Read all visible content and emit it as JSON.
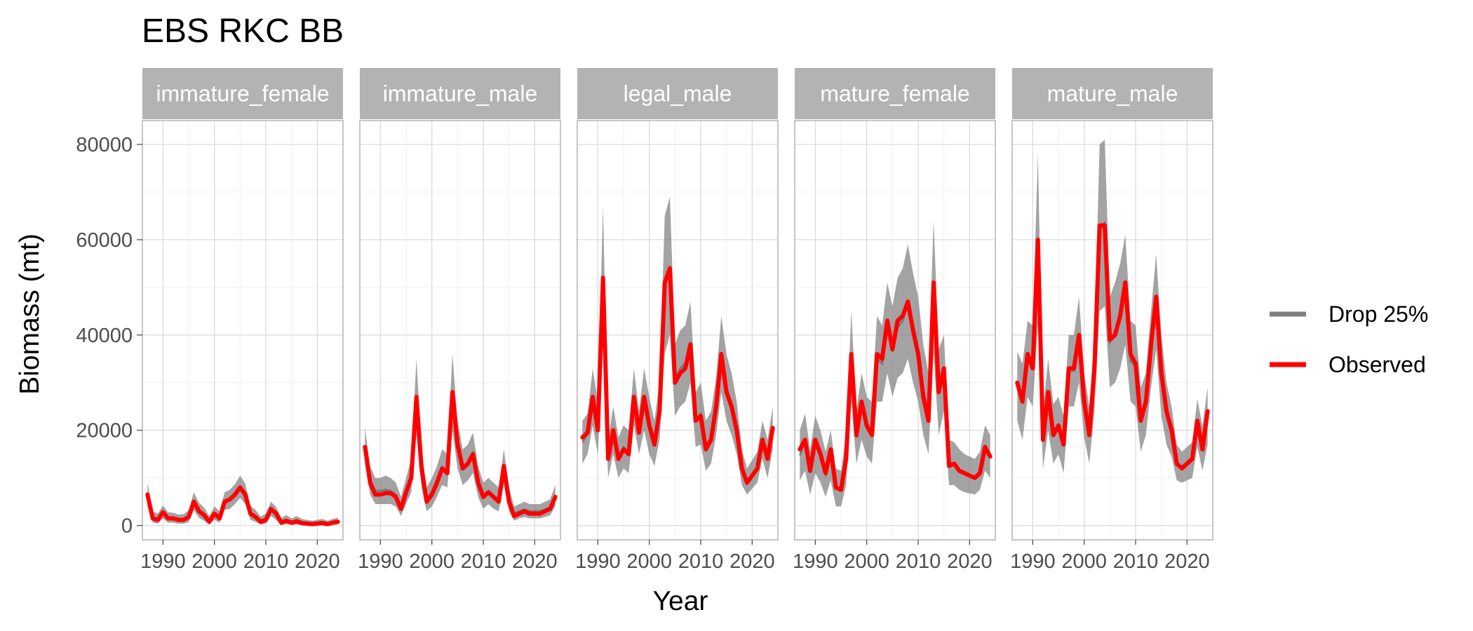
{
  "chart_data": {
    "type": "line",
    "title": "EBS RKC BB",
    "xlabel": "Year",
    "ylabel": "Biomass (mt)",
    "xlim": [
      1986,
      2025
    ],
    "ylim": [
      -3000,
      85000
    ],
    "x_ticks": [
      1990,
      2000,
      2010,
      2020
    ],
    "y_ticks": [
      0,
      20000,
      40000,
      60000,
      80000
    ],
    "grid": true,
    "legend_position": "right",
    "legend": [
      {
        "label": "Drop 25%",
        "color": "#7f7f7f"
      },
      {
        "label": "Observed",
        "color": "#ff0000"
      }
    ],
    "colors": {
      "band": "#7f7f7f",
      "observed": "#ff0000",
      "strip": "#b3b3b3"
    },
    "years": [
      1987,
      1988,
      1989,
      1990,
      1991,
      1992,
      1993,
      1994,
      1995,
      1996,
      1997,
      1998,
      1999,
      2000,
      2001,
      2002,
      2003,
      2004,
      2005,
      2006,
      2007,
      2008,
      2009,
      2010,
      2011,
      2012,
      2013,
      2014,
      2015,
      2016,
      2017,
      2018,
      2019,
      2021,
      2022,
      2023,
      2024
    ],
    "panels": [
      {
        "label": "immature_female",
        "observed": [
          6500,
          1500,
          1200,
          2800,
          1500,
          1500,
          1200,
          1200,
          1800,
          5000,
          3000,
          2200,
          800,
          2500,
          1500,
          5000,
          5500,
          6500,
          8000,
          6500,
          2500,
          1800,
          800,
          1200,
          3500,
          2500,
          600,
          1000,
          600,
          900,
          500,
          400,
          300,
          500,
          300,
          600,
          800
        ],
        "band_upper": [
          9000,
          3000,
          2500,
          4200,
          2800,
          2700,
          2300,
          2400,
          3200,
          7000,
          4800,
          3800,
          2000,
          4000,
          3000,
          7000,
          7500,
          8700,
          10500,
          8800,
          4200,
          3300,
          1900,
          2500,
          5000,
          3900,
          1600,
          2200,
          1500,
          2000,
          1400,
          1200,
          1000,
          1400,
          1000,
          1400,
          1700
        ],
        "band_lower": [
          4000,
          600,
          400,
          1500,
          600,
          600,
          400,
          400,
          700,
          3200,
          1600,
          1000,
          200,
          1200,
          600,
          3300,
          3500,
          4500,
          5800,
          4500,
          1200,
          800,
          200,
          400,
          2000,
          1200,
          100,
          300,
          100,
          200,
          100,
          50,
          50,
          100,
          50,
          100,
          200
        ]
      },
      {
        "label": "immature_male",
        "observed": [
          16500,
          9000,
          6500,
          6500,
          6800,
          6800,
          6000,
          3500,
          7000,
          10000,
          27000,
          12000,
          5000,
          6500,
          9000,
          12000,
          11000,
          28000,
          17000,
          12000,
          13000,
          15000,
          9000,
          6000,
          7000,
          6000,
          5000,
          12500,
          5000,
          2000,
          2500,
          3000,
          2500,
          2500,
          3000,
          3500,
          6000
        ],
        "band_upper": [
          20500,
          12500,
          10000,
          10000,
          10500,
          10000,
          9000,
          6000,
          10000,
          14000,
          35000,
          16000,
          8000,
          10000,
          12500,
          16000,
          15000,
          36000,
          22000,
          16000,
          17000,
          19500,
          12500,
          9000,
          10000,
          9000,
          8000,
          16000,
          8000,
          4000,
          4500,
          5000,
          4500,
          4500,
          5000,
          5500,
          8500
        ],
        "band_lower": [
          13000,
          6500,
          4500,
          4500,
          4500,
          4500,
          4000,
          2000,
          4500,
          7000,
          19000,
          8000,
          3000,
          4000,
          6000,
          8500,
          8000,
          20000,
          12000,
          8500,
          9500,
          11000,
          6000,
          3500,
          4500,
          3500,
          3000,
          8500,
          3000,
          1000,
          1500,
          1800,
          1500,
          1500,
          1800,
          2200,
          4000
        ]
      },
      {
        "label": "legal_male",
        "observed": [
          18500,
          19500,
          27000,
          20000,
          52000,
          14000,
          20000,
          14000,
          16000,
          15000,
          27000,
          19500,
          27000,
          21000,
          17000,
          24000,
          51000,
          54000,
          30000,
          32000,
          33000,
          38000,
          22000,
          23000,
          16000,
          18000,
          25000,
          36000,
          28000,
          25000,
          20000,
          12000,
          9000,
          12000,
          18000,
          14000,
          20500
        ],
        "band_upper": [
          22000,
          23500,
          33000,
          26000,
          67000,
          18000,
          25000,
          18500,
          21000,
          20000,
          33000,
          24000,
          33000,
          27000,
          22000,
          30000,
          65000,
          69000,
          38000,
          41000,
          42000,
          47000,
          28000,
          30000,
          22000,
          24000,
          31000,
          44000,
          36000,
          32000,
          26000,
          16000,
          12000,
          15500,
          22000,
          18000,
          25000
        ],
        "band_lower": [
          13000,
          15000,
          21000,
          15000,
          38000,
          10000,
          15000,
          10000,
          12000,
          11000,
          21000,
          15000,
          20000,
          15000,
          12500,
          18000,
          36000,
          40000,
          23000,
          25000,
          26000,
          30000,
          16500,
          17000,
          11500,
          13000,
          19000,
          28000,
          22000,
          19000,
          15000,
          8500,
          6500,
          9000,
          14000,
          10000,
          16000
        ]
      },
      {
        "label": "mature_female",
        "observed": [
          16000,
          18000,
          11500,
          18000,
          15000,
          11000,
          16000,
          8000,
          7500,
          14000,
          36000,
          19000,
          26000,
          21000,
          19000,
          36000,
          35000,
          43000,
          37000,
          43000,
          44000,
          47000,
          41000,
          36000,
          27000,
          22000,
          51000,
          28000,
          33000,
          12500,
          13000,
          11500,
          11000,
          10000,
          11000,
          16500,
          14500
        ],
        "band_upper": [
          20000,
          23500,
          16000,
          23000,
          20000,
          15500,
          20000,
          12000,
          11500,
          19500,
          45000,
          24000,
          32000,
          27000,
          26000,
          44000,
          42000,
          51000,
          46000,
          52000,
          54000,
          59000,
          53000,
          48000,
          38000,
          32000,
          64000,
          37000,
          40000,
          18000,
          17500,
          16000,
          15000,
          14000,
          15500,
          21000,
          19000
        ],
        "band_lower": [
          9500,
          11500,
          6500,
          11000,
          9000,
          6000,
          9500,
          4000,
          4000,
          8500,
          26000,
          13000,
          18000,
          14500,
          13000,
          26000,
          26000,
          32000,
          27000,
          31000,
          32000,
          35000,
          30000,
          26000,
          19000,
          15000,
          36000,
          19000,
          24000,
          8500,
          8500,
          7500,
          7000,
          6500,
          7500,
          11500,
          10000
        ]
      },
      {
        "label": "mature_male",
        "observed": [
          30000,
          26000,
          36000,
          33000,
          60000,
          18000,
          28000,
          19000,
          21000,
          17000,
          33000,
          33000,
          40000,
          26000,
          19000,
          33000,
          63000,
          63000,
          39000,
          40000,
          44000,
          51000,
          36000,
          34000,
          22000,
          26000,
          38000,
          48000,
          32000,
          24000,
          20000,
          13000,
          12000,
          14000,
          22000,
          16000,
          24000
        ],
        "band_upper": [
          36500,
          34000,
          43000,
          42000,
          78000,
          24000,
          35000,
          25500,
          27000,
          23000,
          40000,
          40000,
          48000,
          32000,
          25000,
          40000,
          80000,
          81000,
          48000,
          51000,
          55000,
          61000,
          43000,
          42000,
          29000,
          32000,
          45000,
          57000,
          40000,
          30000,
          25000,
          17000,
          15500,
          17500,
          26500,
          21000,
          29000
        ],
        "band_lower": [
          22000,
          18000,
          27000,
          25000,
          42000,
          12000,
          20000,
          13000,
          15000,
          11000,
          25000,
          25000,
          30000,
          18500,
          13000,
          24000,
          45000,
          46000,
          29000,
          30000,
          33000,
          38000,
          26000,
          25000,
          15500,
          19000,
          29000,
          37000,
          23000,
          17000,
          14500,
          9500,
          9000,
          10000,
          16500,
          11500,
          17000
        ]
      }
    ]
  }
}
